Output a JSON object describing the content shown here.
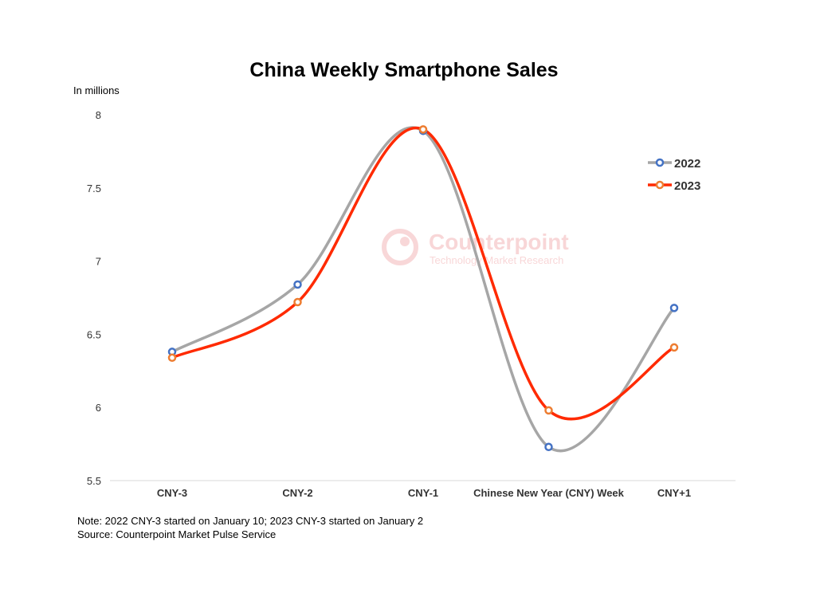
{
  "chart_data": {
    "type": "line",
    "title": "China Weekly Smartphone Sales",
    "ylabel": "In millions",
    "xlabel": "",
    "ylim": [
      5.5,
      8
    ],
    "yticks": [
      "5.5",
      "6",
      "6.5",
      "7",
      "7.5",
      "8"
    ],
    "yticks_values": [
      5.5,
      6,
      6.5,
      7,
      7.5,
      8
    ],
    "categories": [
      "CNY-3",
      "CNY-2",
      "CNY-1",
      "Chinese New Year (CNY) Week",
      "CNY+1"
    ],
    "series": [
      {
        "name": "2022",
        "values": [
          6.38,
          6.84,
          7.89,
          5.73,
          6.68
        ],
        "line_color": "#a6a6a6",
        "marker_color": "#4472c4"
      },
      {
        "name": "2023",
        "values": [
          6.34,
          6.72,
          7.9,
          5.98,
          6.41
        ],
        "line_color": "#ff2a00",
        "marker_color": "#ed7d31"
      }
    ],
    "legend_position": "top-right",
    "grid": false
  },
  "watermark": {
    "brand": "Counterpoint",
    "tagline": "Technology Market Research"
  },
  "footer": {
    "note": "Note: 2022 CNY-3 started on January 10; 2023 CNY-3 started on January 2",
    "source": "Source: Counterpoint Market Pulse Service"
  }
}
